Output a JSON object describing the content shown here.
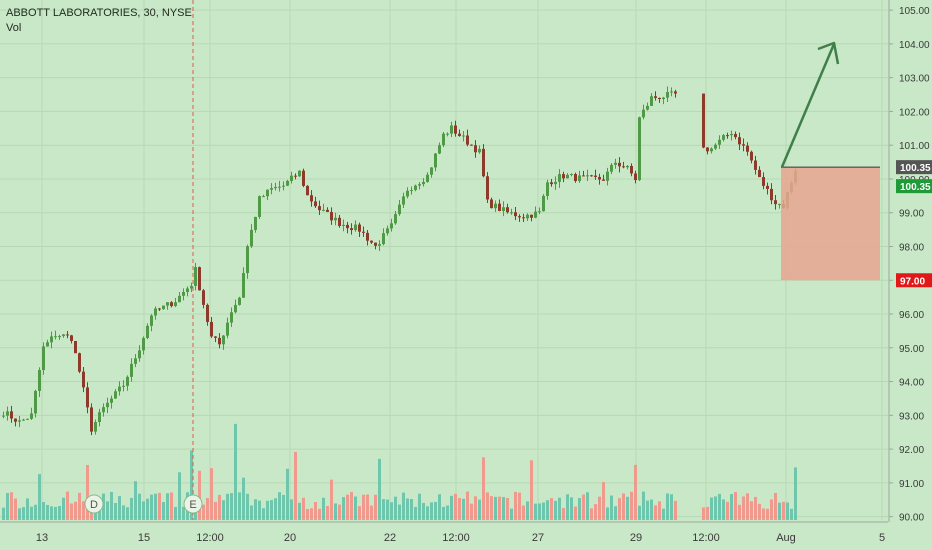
{
  "legend": {
    "symbol_line": "ABBOTT LABORATORIES, 30, NYSE",
    "volume_label": "Vol"
  },
  "colors": {
    "background": "#c9e8c8",
    "grid": "#b6d9b4",
    "up": "#4f9a45",
    "down": "#8e3a2b",
    "volume_up": "#6ec6ad",
    "volume_down": "#ef9a8d",
    "target_arrow": "#3f7f4a",
    "stop_box": "#e7a58f",
    "price_tag_current": "#555555",
    "price_tag_green": "#1e9b37",
    "price_tag_red": "#e01818",
    "event_line": "#e05a4a"
  },
  "chart_data": {
    "type": "candlestick",
    "title": "ABBOTT LABORATORIES, 30, NYSE",
    "x_tick_labels": [
      "13",
      "15",
      "12:00",
      "20",
      "22",
      "12:00",
      "27",
      "29",
      "12:00",
      "Aug",
      "5"
    ],
    "y_tick_labels": [
      "90.00",
      "91.00",
      "92.00",
      "93.00",
      "94.00",
      "95.00",
      "96.00",
      "97.00",
      "98.00",
      "99.00",
      "100.00",
      "101.00",
      "102.00",
      "103.00",
      "104.00",
      "105.00"
    ],
    "ylim": [
      89.9,
      105.3
    ],
    "grid": true,
    "legend_position": "top-left",
    "price_anchors": [
      {
        "bar": 0,
        "close": 93.1
      },
      {
        "bar": 4,
        "close": 92.8
      },
      {
        "bar": 7,
        "close": 93.0
      },
      {
        "bar": 10,
        "close": 95.0
      },
      {
        "bar": 13,
        "close": 95.4
      },
      {
        "bar": 17,
        "close": 95.3
      },
      {
        "bar": 19,
        "close": 94.3
      },
      {
        "bar": 22,
        "close": 92.6
      },
      {
        "bar": 25,
        "close": 93.2
      },
      {
        "bar": 30,
        "close": 93.9
      },
      {
        "bar": 34,
        "close": 95.0
      },
      {
        "bar": 37,
        "close": 96.0
      },
      {
        "bar": 43,
        "close": 96.4
      },
      {
        "bar": 47,
        "close": 96.9
      },
      {
        "bar": 48,
        "close": 97.3
      },
      {
        "bar": 50,
        "close": 96.3
      },
      {
        "bar": 52,
        "close": 95.3
      },
      {
        "bar": 54,
        "close": 95.1
      },
      {
        "bar": 57,
        "close": 96.1
      },
      {
        "bar": 59,
        "close": 96.5
      },
      {
        "bar": 61,
        "close": 98.0
      },
      {
        "bar": 64,
        "close": 99.4
      },
      {
        "bar": 67,
        "close": 99.7
      },
      {
        "bar": 70,
        "close": 99.8
      },
      {
        "bar": 74,
        "close": 100.2
      },
      {
        "bar": 76,
        "close": 99.5
      },
      {
        "bar": 79,
        "close": 99.1
      },
      {
        "bar": 84,
        "close": 98.7
      },
      {
        "bar": 89,
        "close": 98.5
      },
      {
        "bar": 93,
        "close": 98.0
      },
      {
        "bar": 97,
        "close": 98.6
      },
      {
        "bar": 101,
        "close": 99.7
      },
      {
        "bar": 106,
        "close": 100.1
      },
      {
        "bar": 110,
        "close": 101.3
      },
      {
        "bar": 112,
        "close": 101.5
      },
      {
        "bar": 116,
        "close": 101.1
      },
      {
        "bar": 119,
        "close": 100.8
      },
      {
        "bar": 121,
        "close": 99.3
      },
      {
        "bar": 126,
        "close": 99.0
      },
      {
        "bar": 130,
        "close": 98.9
      },
      {
        "bar": 134,
        "close": 99.0
      },
      {
        "bar": 136,
        "close": 99.9
      },
      {
        "bar": 140,
        "close": 100.1
      },
      {
        "bar": 145,
        "close": 100.0
      },
      {
        "bar": 150,
        "close": 100.0
      },
      {
        "bar": 153,
        "close": 100.5
      },
      {
        "bar": 156,
        "close": 100.3
      },
      {
        "bar": 158,
        "close": 100.0
      },
      {
        "bar": 159,
        "close": 101.8
      },
      {
        "bar": 162,
        "close": 102.4
      },
      {
        "bar": 168,
        "close": 102.5
      },
      {
        "bar": 170,
        "close": 100.9
      },
      {
        "bar": 174,
        "close": 100.9
      },
      {
        "bar": 179,
        "close": 101.4
      },
      {
        "bar": 183,
        "close": 100.8
      },
      {
        "bar": 186,
        "close": 100.0
      },
      {
        "bar": 190,
        "close": 99.3
      },
      {
        "bar": 192,
        "close": 99.2
      },
      {
        "bar": 195,
        "close": 100.3
      }
    ],
    "bar_count": 196,
    "gaps": [
      {
        "after_bar": 168,
        "bars": 3
      }
    ],
    "last_price": 100.35,
    "annotations": {
      "current_price_label": "100.35",
      "bid_price_label": "100.35",
      "stop_price_label": "97.00",
      "stop_price": 97.0,
      "event_markers": [
        "D",
        "E"
      ]
    }
  }
}
